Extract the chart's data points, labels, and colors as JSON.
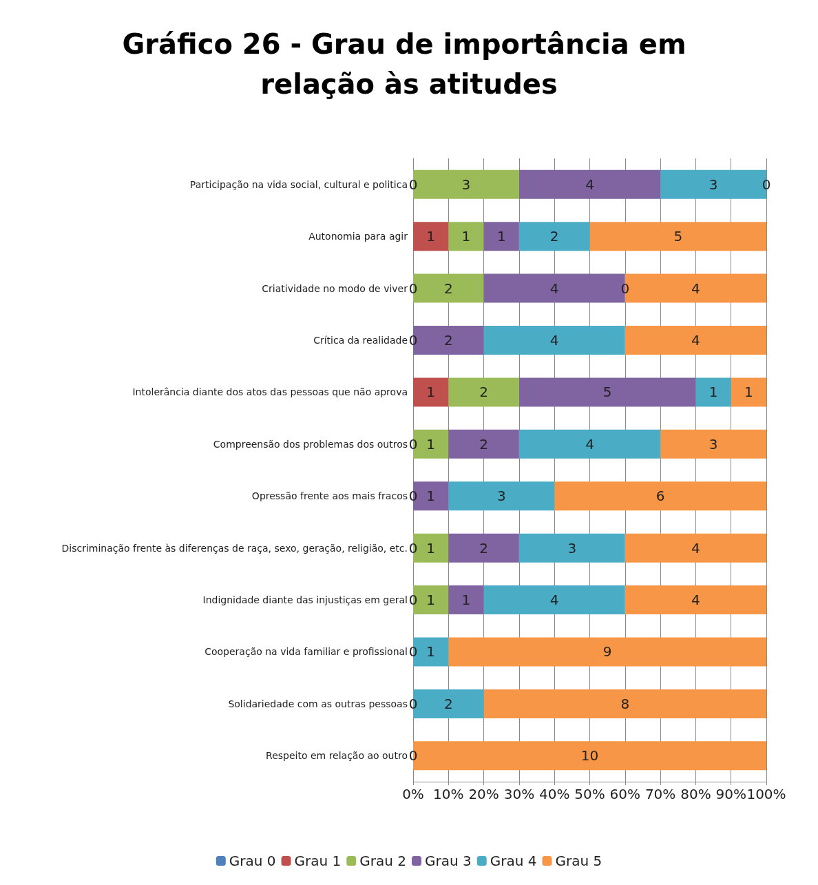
{
  "chart_data": {
    "type": "bar",
    "orientation": "horizontal",
    "stacked": true,
    "title": "Gráfico 26 - Grau de importância em relação às atitudes",
    "categories": [
      "Participação na vida social, cultural e politica",
      "Autonomia para agir",
      "Criatividade no modo de viver",
      "Crítica da realidade",
      "Intolerância diante dos atos das pessoas que não aprova",
      "Compreensão dos problemas dos outros",
      "Opressão frente aos mais fracos",
      "Discriminação frente às diferenças de raça, sexo, geração, religião, etc.",
      "Indignidade diante das injustiças em geral",
      "Cooperação na vida familiar e profissional",
      "Solidariedade com as outras pessoas",
      "Respeito em relação ao outro"
    ],
    "series": [
      {
        "name": "Grau 0",
        "color": "#4f81bd",
        "values": [
          null,
          null,
          null,
          null,
          null,
          null,
          null,
          null,
          null,
          null,
          null,
          null
        ]
      },
      {
        "name": "Grau 1",
        "color": "#c0504d",
        "values": [
          0,
          10,
          0,
          0,
          10,
          0,
          0,
          0,
          0,
          0,
          0,
          0
        ]
      },
      {
        "name": "Grau 2",
        "color": "#9bbb59",
        "values": [
          30,
          10,
          20,
          null,
          20,
          10,
          null,
          10,
          10,
          null,
          null,
          null
        ]
      },
      {
        "name": "Grau 3",
        "color": "#8064a2",
        "values": [
          40,
          10,
          40,
          20,
          50,
          20,
          10,
          20,
          10,
          null,
          null,
          null
        ]
      },
      {
        "name": "Grau 4",
        "color": "#4bacc6",
        "values": [
          30,
          20,
          0,
          40,
          10,
          40,
          30,
          30,
          40,
          10,
          20,
          null
        ]
      },
      {
        "name": "Grau 5",
        "color": "#f79646",
        "values": [
          0,
          50,
          40,
          40,
          10,
          30,
          60,
          40,
          40,
          90,
          80,
          100
        ]
      }
    ],
    "xlim": [
      0,
      100
    ],
    "xticks": [
      {
        "value": 0,
        "label": "0%"
      },
      {
        "value": 10,
        "label": "10%"
      },
      {
        "value": 20,
        "label": "20%"
      },
      {
        "value": 30,
        "label": "30%"
      },
      {
        "value": 40,
        "label": "40%"
      },
      {
        "value": 50,
        "label": "50%"
      },
      {
        "value": 60,
        "label": "60%"
      },
      {
        "value": 70,
        "label": "70%"
      },
      {
        "value": 80,
        "label": "80%"
      },
      {
        "value": 90,
        "label": "90%"
      },
      {
        "value": 100,
        "label": "100%"
      }
    ],
    "annotations": [
      "0",
      "3",
      "4",
      "3",
      "0",
      "1",
      "1",
      "1",
      "2",
      "5",
      "0",
      "2",
      "4",
      "0",
      "4",
      "0",
      "2",
      "4",
      "4",
      "1",
      "2",
      "5",
      "1",
      "1",
      "0",
      "1",
      "2",
      "4",
      "3",
      "0",
      "1",
      "3",
      "6",
      "0",
      "1",
      "2",
      "3",
      "4",
      "0",
      "1",
      "1",
      "4",
      "4",
      "0",
      "1",
      "9",
      "0",
      "2",
      "8",
      "0",
      "10"
    ],
    "grid": "x",
    "legend": "bottom"
  }
}
